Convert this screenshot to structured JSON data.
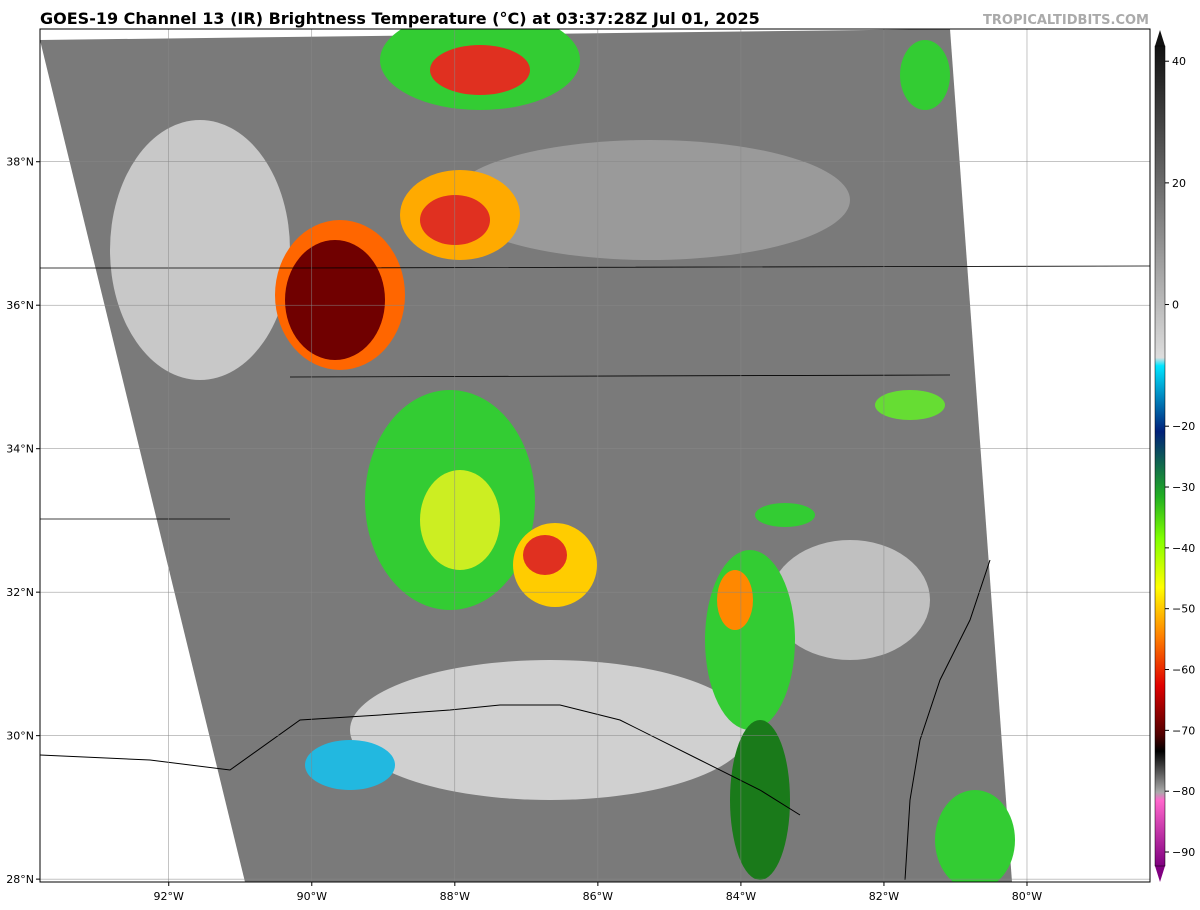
{
  "header": {
    "title": "GOES-19 Channel 13 (IR) Brightness Temperature (°C) at 03:37:28Z Jul 01, 2025",
    "watermark": "TROPICALTIDBITS.COM"
  },
  "map": {
    "lonlim": [
      -93.8,
      -78.28
    ],
    "latlim": [
      27.96,
      39.85
    ],
    "lon_ticks": [
      {
        "value": -92,
        "label": "92°W"
      },
      {
        "value": -90,
        "label": "90°W"
      },
      {
        "value": -88,
        "label": "88°W"
      },
      {
        "value": -86,
        "label": "86°W"
      },
      {
        "value": -84,
        "label": "84°W"
      },
      {
        "value": -82,
        "label": "82°W"
      },
      {
        "value": -80,
        "label": "80°W"
      }
    ],
    "lat_ticks": [
      {
        "value": 28,
        "label": "28°N"
      },
      {
        "value": 30,
        "label": "30°N"
      },
      {
        "value": 32,
        "label": "32°N"
      },
      {
        "value": 34,
        "label": "34°N"
      },
      {
        "value": 36,
        "label": "36°N"
      },
      {
        "value": 38,
        "label": "38°N"
      }
    ]
  },
  "colorbar": {
    "lim": [
      -92.3,
      42.5
    ],
    "ticks": [
      40,
      20,
      0,
      {
        "value": -20,
        "label": "−20"
      },
      {
        "value": -30,
        "label": "−30"
      },
      {
        "value": -40,
        "label": "−40"
      },
      {
        "value": -50,
        "label": "−50"
      },
      {
        "value": -60,
        "label": "−60"
      },
      {
        "value": -70,
        "label": "−70"
      },
      {
        "value": -80,
        "label": "−80"
      },
      {
        "value": -90,
        "label": "−90"
      }
    ]
  }
}
